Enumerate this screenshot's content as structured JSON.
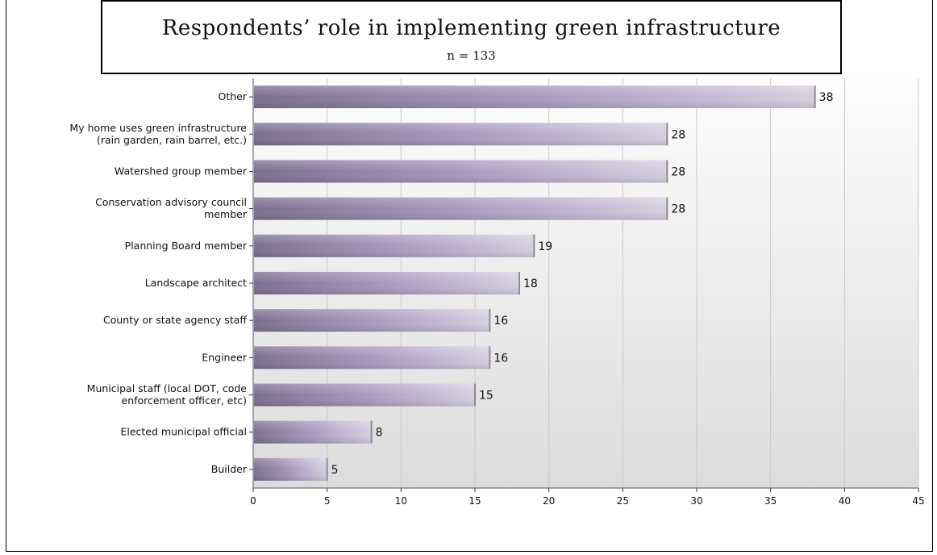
{
  "chart_data": {
    "type": "bar",
    "orientation": "horizontal",
    "title": "Respondents’ role in implementing green infrastructure",
    "subtitle": "n = 133",
    "categories": [
      "Other",
      "My home uses green infrastructure (rain garden, rain barrel, etc.)",
      "Watershed group member",
      "Conservation advisory council member",
      "Planning Board member",
      "Landscape architect",
      "County or state agency staff",
      "Engineer",
      "Municipal staff (local DOT, code enforcement officer, etc)",
      "Elected municipal official",
      "Builder"
    ],
    "category_lines": [
      [
        "Other"
      ],
      [
        "My home uses green infrastructure",
        "(rain garden, rain barrel, etc.)"
      ],
      [
        "Watershed group member"
      ],
      [
        "Conservation advisory council",
        "member"
      ],
      [
        "Planning Board member"
      ],
      [
        "Landscape architect"
      ],
      [
        "County or state agency staff"
      ],
      [
        "Engineer"
      ],
      [
        "Municipal staff (local DOT, code",
        "enforcement officer, etc)"
      ],
      [
        "Elected municipal official"
      ],
      [
        "Builder"
      ]
    ],
    "values": [
      38,
      28,
      28,
      28,
      19,
      18,
      16,
      16,
      15,
      8,
      5
    ],
    "x_ticks": [
      "0",
      "5",
      "10",
      "15",
      "20",
      "25",
      "30",
      "35",
      "40",
      "45"
    ],
    "xlim": [
      0,
      45
    ],
    "xlabel": "",
    "ylabel": "",
    "grid": "vertical",
    "legend": "none",
    "colors": {
      "bar_dark": "#7b6f90",
      "bar_mid": "#a899bf",
      "bar_light": "#d6cfe0",
      "grid": "#c8c8c8",
      "plot_bg_top": "#fdfdfd",
      "plot_bg_bottom": "#dcdcdc"
    }
  }
}
